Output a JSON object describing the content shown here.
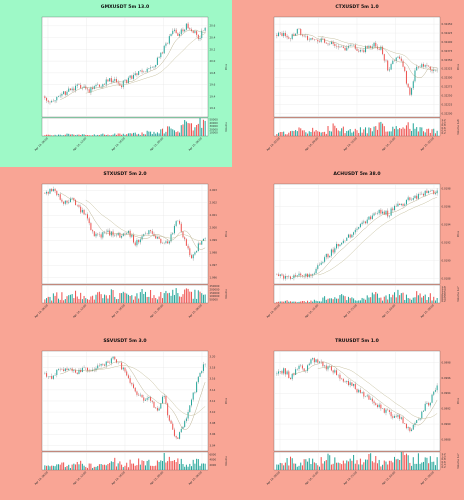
{
  "colors": {
    "background_default": "#f9a595",
    "background_highlight": "#9ef9c7",
    "up": "#26a69a",
    "down": "#ef5350",
    "ma": "#b0a77a",
    "grid": "#e3e3e3"
  },
  "chart_data": [
    {
      "type": "candlestick",
      "title": "GMXUSDT 5m 13.0",
      "highlighted": true,
      "ylabel": "Price",
      "volume_label": "Volume",
      "price_ticks": [
        "20.6",
        "20.4",
        "20.2",
        "20.0",
        "19.8",
        "19.6",
        "19.4",
        "19.2"
      ],
      "ylim": [
        19.05,
        20.75
      ],
      "volume_ticks": [
        "50000",
        "40000",
        "30000",
        "20000",
        "10000"
      ],
      "volume_max": 55000,
      "x_ticks": [
        "Apr 14, 06:00",
        "Apr 14, 12:00",
        "Apr 14, 18:00",
        "Apr 15, 00:00",
        "Apr 15, 06:00"
      ],
      "close_path": [
        19.4,
        19.3,
        19.35,
        19.45,
        19.5,
        19.55,
        19.6,
        19.5,
        19.55,
        19.6,
        19.7,
        19.65,
        19.6,
        19.7,
        19.75,
        19.8,
        19.85,
        19.9,
        20.1,
        20.3,
        20.5,
        20.45,
        20.6,
        20.5,
        20.4,
        20.55
      ],
      "volume_path": [
        4000,
        3000,
        3500,
        5000,
        4500,
        3000,
        6000,
        4000,
        3000,
        5000,
        4000,
        7000,
        5000,
        6000,
        8000,
        6000,
        12000,
        9000,
        15000,
        20000,
        30000,
        18000,
        45000,
        25000,
        50000,
        35000
      ],
      "candles": 95
    },
    {
      "type": "candlestick",
      "title": "CTXUSDT 5m 1.0",
      "highlighted": false,
      "ylabel": "Price",
      "volume_label": "Volume  1e6",
      "price_ticks": [
        "0.32450",
        "0.32425",
        "0.32400",
        "0.32375",
        "0.32350",
        "0.32325",
        "0.32300",
        "0.32275",
        "0.32250",
        "0.32225",
        "0.32200"
      ],
      "ylim": [
        0.3219,
        0.3247
      ],
      "volume_ticks": [
        "1.2",
        "1.0",
        "0.8",
        "0.6",
        "0.4",
        "0.2"
      ],
      "volume_max": 1.35,
      "x_ticks": [
        "Apr 14, 03:00",
        "Apr 14, 09:00",
        "Apr 14, 15:00",
        "Apr 14, 21:00",
        "Apr 15, 03:00"
      ],
      "close_path": [
        0.3242,
        0.32425,
        0.3241,
        0.3243,
        0.3242,
        0.32405,
        0.3241,
        0.32395,
        0.324,
        0.3238,
        0.32385,
        0.3239,
        0.32375,
        0.32385,
        0.32395,
        0.3238,
        0.3232,
        0.3236,
        0.32345,
        0.3225,
        0.3233,
        0.3234,
        0.3232,
        0.3233
      ],
      "volume_path": [
        0.2,
        0.3,
        0.25,
        0.5,
        0.3,
        0.4,
        0.6,
        0.3,
        0.9,
        0.5,
        0.4,
        0.3,
        0.6,
        0.4,
        0.5,
        0.7,
        0.5,
        0.6,
        0.4,
        0.8,
        0.5,
        0.6,
        0.4,
        0.3
      ],
      "candles": 95
    },
    {
      "type": "candlestick",
      "title": "STXUSDT 5m 2.0",
      "highlighted": false,
      "ylabel": "Price",
      "volume_label": "Volume",
      "price_ticks": [
        "2.003",
        "2.002",
        "2.001",
        "2.000",
        "1.999",
        "1.998",
        "1.997",
        "1.996"
      ],
      "ylim": [
        1.9955,
        2.0035
      ],
      "volume_ticks": [
        "250000",
        "200000",
        "150000",
        "100000",
        "50000"
      ],
      "volume_max": 270000,
      "x_ticks": [
        "Apr 14, 06:00",
        "Apr 14, 12:00",
        "Apr 14, 18:00",
        "Apr 15, 00:00",
        "Apr 15, 06:00"
      ],
      "close_path": [
        2.0028,
        2.003,
        2.0025,
        2.002,
        2.0023,
        2.0015,
        2.0008,
        1.9995,
        1.9993,
        1.9998,
        1.9992,
        1.9995,
        1.9997,
        1.9988,
        1.9992,
        1.9996,
        1.9993,
        1.9985,
        1.9992,
        2.0008,
        1.999,
        1.9975,
        1.9985,
        1.9992
      ],
      "volume_path": [
        60000,
        90000,
        120000,
        80000,
        100000,
        150000,
        110000,
        90000,
        130000,
        160000,
        120000,
        100000,
        140000,
        110000,
        170000,
        130000,
        120000,
        160000,
        110000,
        220000,
        140000,
        170000,
        120000,
        100000
      ],
      "candles": 95
    },
    {
      "type": "candlestick",
      "title": "ACHUSDT 5m 38.0",
      "highlighted": false,
      "ylabel": "Price",
      "volume_label": "Volume  1e7",
      "price_ticks": [
        "0.0198",
        "0.0196",
        "0.0194",
        "0.0192",
        "0.0190",
        "0.0188"
      ],
      "ylim": [
        0.01874,
        0.01985
      ],
      "volume_ticks": [
        "1.6",
        "1.4",
        "1.2",
        "1.0",
        "0.8",
        "0.6",
        "0.4",
        "0.2"
      ],
      "volume_max": 1.8,
      "x_ticks": [
        "Apr 14, 09:00",
        "Apr 14, 15:00",
        "Apr 14, 21:00",
        "Apr 15, 03:00",
        "Apr 15, 09:00"
      ],
      "close_path": [
        0.01885,
        0.01882,
        0.01881,
        0.01883,
        0.01884,
        0.01882,
        0.01895,
        0.01905,
        0.0191,
        0.0192,
        0.01925,
        0.0193,
        0.0194,
        0.01945,
        0.0195,
        0.01955,
        0.01952,
        0.0196,
        0.01962,
        0.01968,
        0.0197,
        0.01975,
        0.01978,
        0.01976
      ],
      "volume_path": [
        0.1,
        0.15,
        0.2,
        0.1,
        0.15,
        0.2,
        0.3,
        0.5,
        0.4,
        0.6,
        0.5,
        0.7,
        0.4,
        0.6,
        0.8,
        0.5,
        0.6,
        0.9,
        0.7,
        0.6,
        0.8,
        0.5,
        0.7,
        0.4
      ],
      "candles": 95
    },
    {
      "type": "candlestick",
      "title": "SSVUSDT 5m 3.0",
      "highlighted": false,
      "ylabel": "Price",
      "volume_label": "Volume",
      "price_ticks": [
        "3.20",
        "3.18",
        "3.16",
        "3.14",
        "3.12",
        "3.10",
        "3.08",
        "3.06",
        "3.04"
      ],
      "ylim": [
        3.03,
        3.21
      ],
      "volume_ticks": [
        "6000",
        "4000",
        "2000"
      ],
      "volume_max": 7000,
      "x_ticks": [
        "Apr 14, 06:00",
        "Apr 14, 12:00",
        "Apr 14, 18:00",
        "Apr 15, 00:00",
        "Apr 15, 06:00"
      ],
      "close_path": [
        3.17,
        3.165,
        3.175,
        3.18,
        3.17,
        3.175,
        3.18,
        3.175,
        3.19,
        3.185,
        3.2,
        3.18,
        3.16,
        3.14,
        3.12,
        3.13,
        3.1,
        3.13,
        3.08,
        3.05,
        3.08,
        3.12,
        3.16,
        3.19
      ],
      "volume_path": [
        1500,
        1200,
        2000,
        1800,
        1500,
        2500,
        1700,
        1500,
        2800,
        2200,
        3000,
        2000,
        2500,
        3500,
        4000,
        2800,
        3000,
        4500,
        3500,
        6500,
        3000,
        2500,
        3500,
        2000
      ],
      "candles": 95
    },
    {
      "type": "candlestick",
      "title": "TRUUSDT 5m 1.0",
      "highlighted": false,
      "ylabel": "Price",
      "volume_label": "Volume  1e7",
      "price_ticks": [
        "0.0998",
        "0.0996",
        "0.0994",
        "0.0992",
        "0.0990",
        "0.0988"
      ],
      "ylim": [
        0.09865,
        0.09995
      ],
      "volume_ticks": [
        "1.2",
        "1.0",
        "0.8",
        "0.6",
        "0.4",
        "0.2"
      ],
      "volume_max": 1.35,
      "x_ticks": [
        "Apr 14, 09:00",
        "Apr 14, 15:00",
        "Apr 14, 21:00",
        "Apr 15, 03:00",
        "Apr 15, 09:00"
      ],
      "close_path": [
        0.09965,
        0.0997,
        0.0996,
        0.09975,
        0.0997,
        0.09985,
        0.0998,
        0.09975,
        0.0997,
        0.0996,
        0.09955,
        0.0995,
        0.0994,
        0.09935,
        0.0993,
        0.0992,
        0.09915,
        0.0991,
        0.09905,
        0.0989,
        0.099,
        0.0992,
        0.0993,
        0.0995
      ],
      "volume_path": [
        0.3,
        0.5,
        0.7,
        0.4,
        0.6,
        0.8,
        0.5,
        0.9,
        0.6,
        0.7,
        0.5,
        0.8,
        0.6,
        0.9,
        0.7,
        0.5,
        0.8,
        0.6,
        1.2,
        0.7,
        0.9,
        0.6,
        1.0,
        0.8
      ],
      "candles": 95
    }
  ]
}
